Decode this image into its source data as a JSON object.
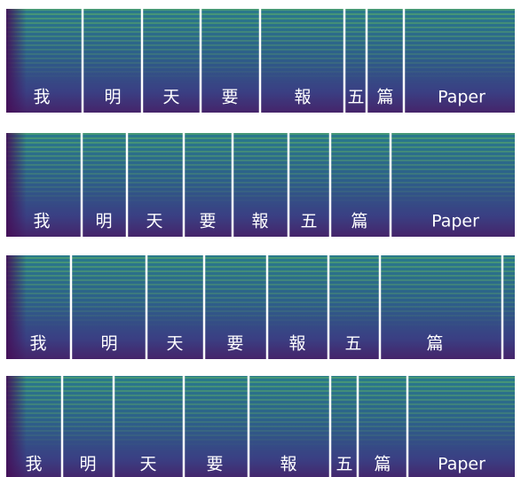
{
  "panels": [
    {
      "labels": [
        "我",
        "明",
        "天",
        "要",
        "報",
        "五",
        "篇",
        "Paper"
      ]
    },
    {
      "labels": [
        "我",
        "明",
        "天",
        "要",
        "報",
        "五",
        "篇",
        "Paper"
      ]
    },
    {
      "labels": [
        "我",
        "明",
        "天",
        "要",
        "報",
        "五",
        "篇"
      ]
    },
    {
      "labels": [
        "我",
        "明",
        "天",
        "要",
        "報",
        "五",
        "篇",
        "Paper"
      ]
    }
  ]
}
